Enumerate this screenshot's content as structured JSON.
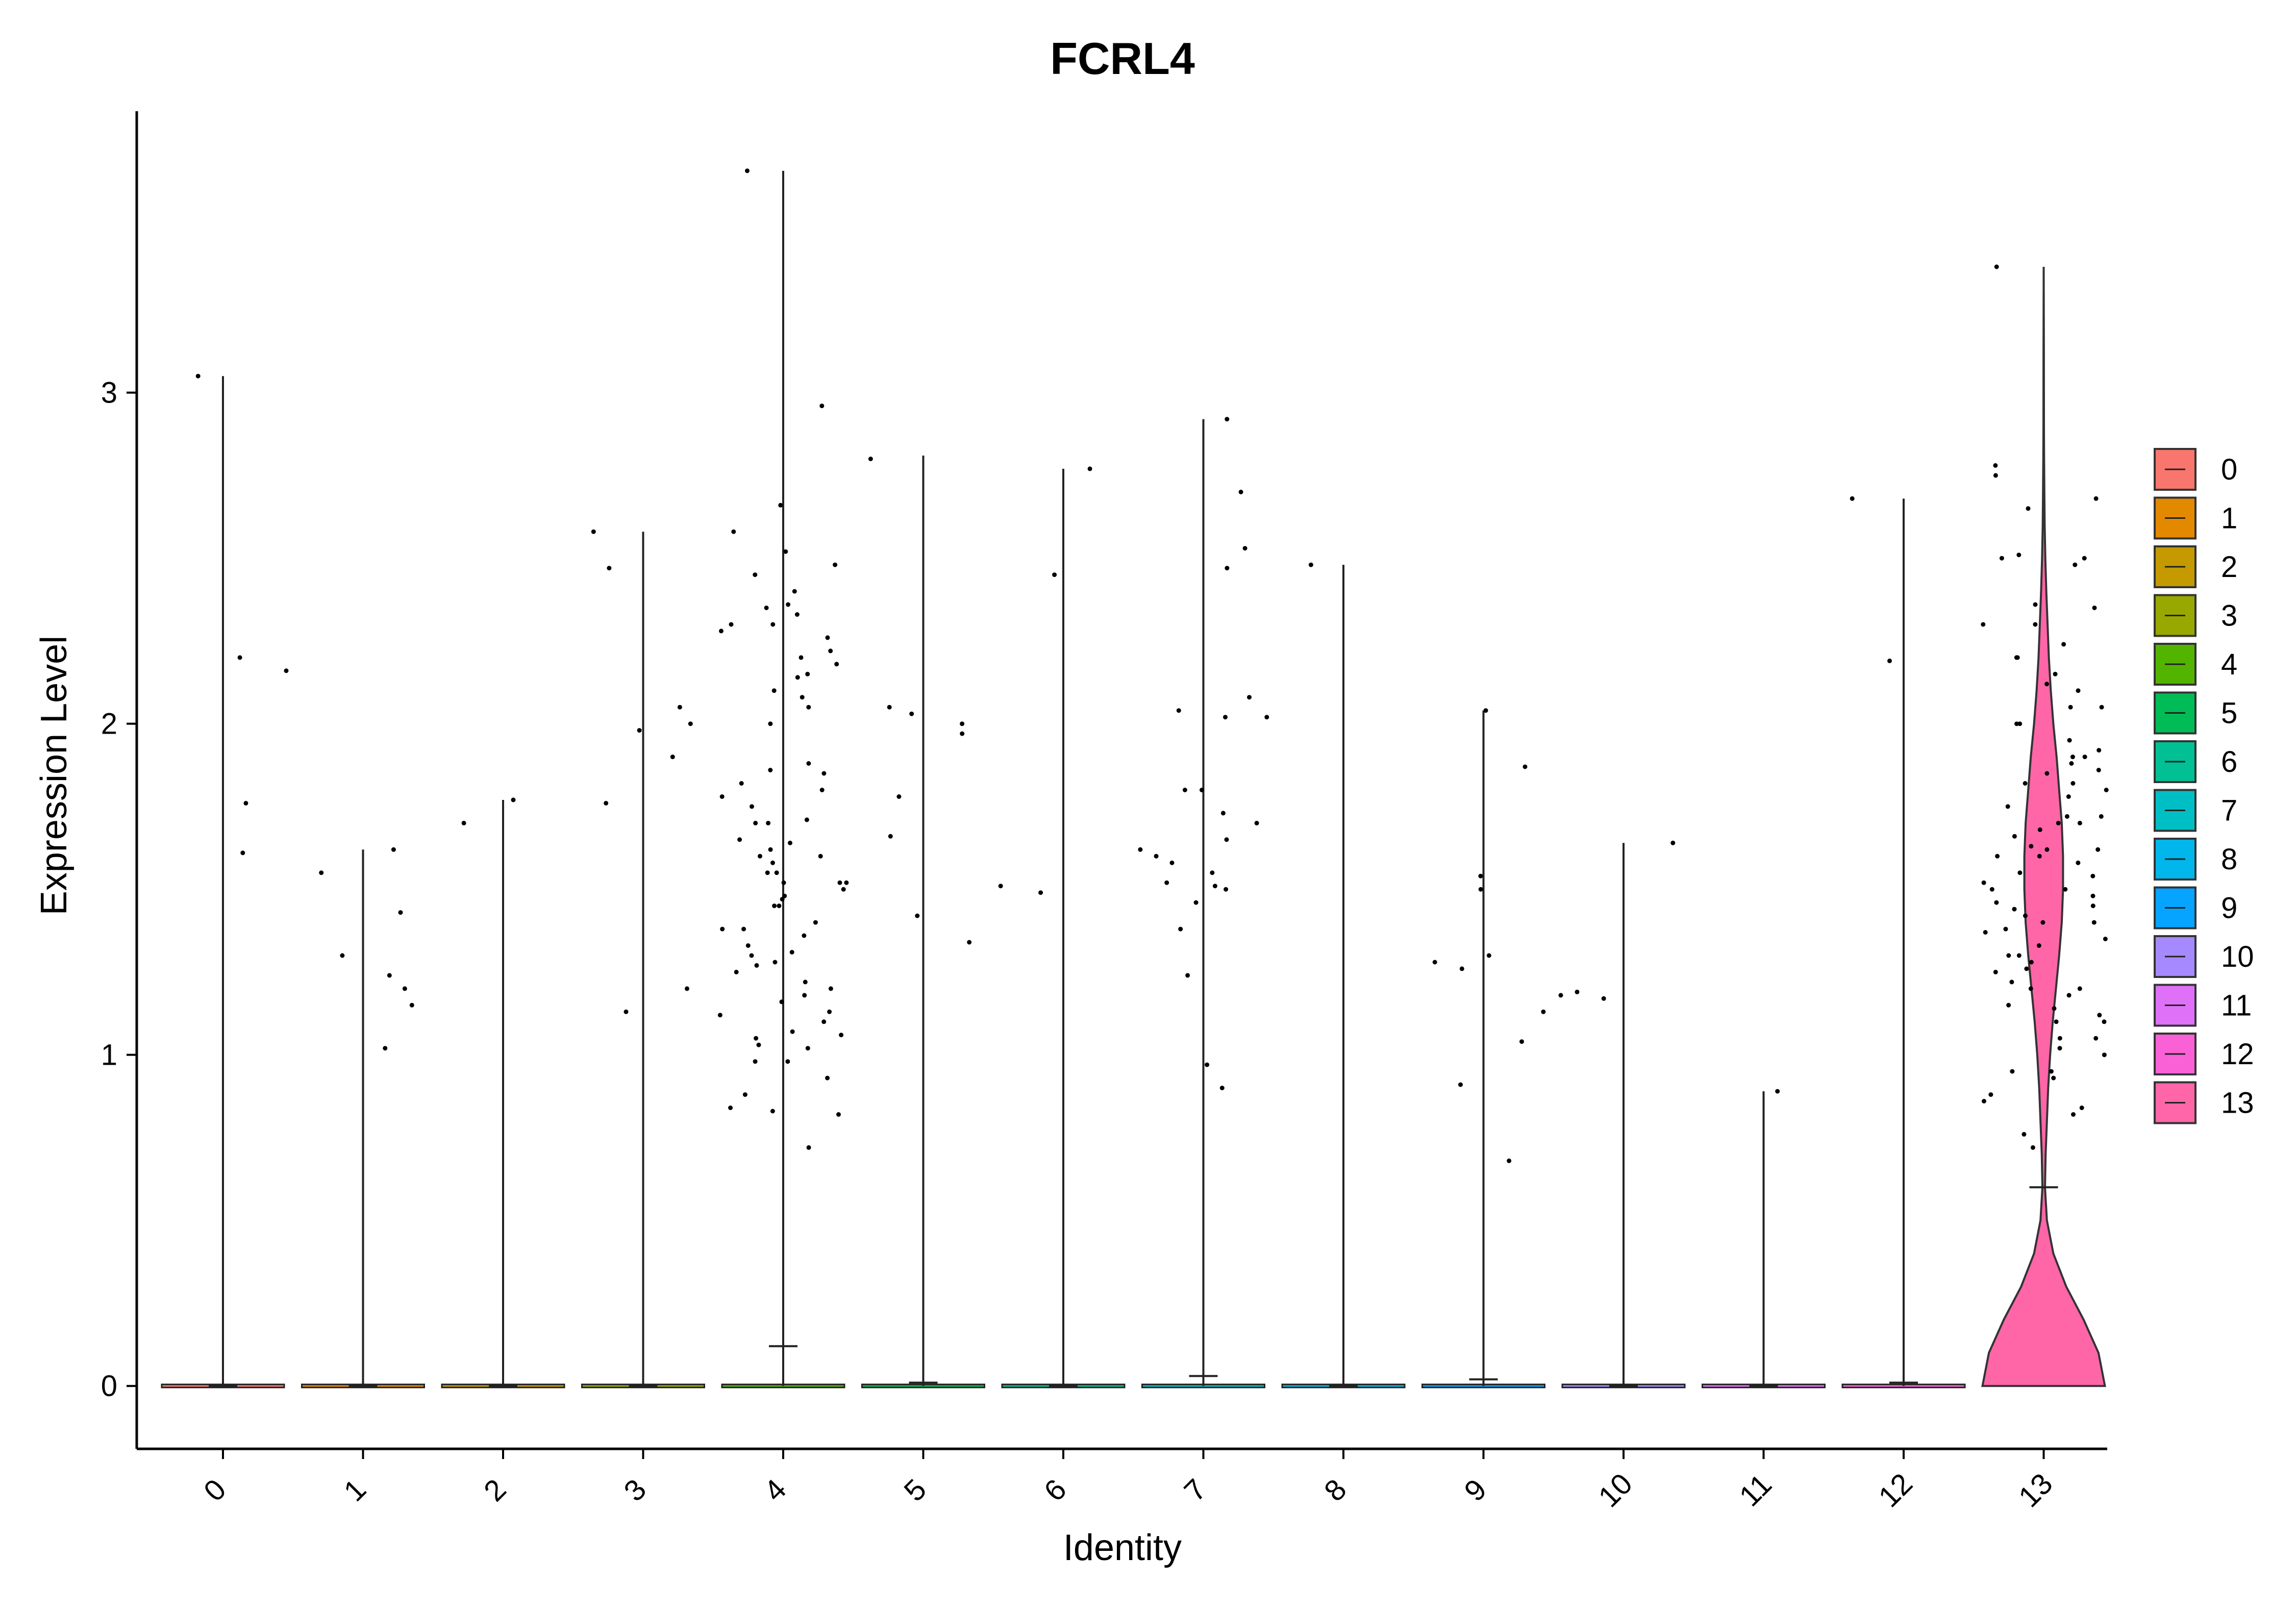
{
  "chart_data": {
    "type": "violin",
    "title": "FCRL4",
    "xlabel": "Identity",
    "ylabel": "Expression Level",
    "ylim": [
      -0.19,
      3.85
    ],
    "yticks": [
      "0",
      "1",
      "2",
      "3"
    ],
    "grid": false,
    "legend_position": "right",
    "categories": [
      "0",
      "1",
      "2",
      "3",
      "4",
      "5",
      "6",
      "7",
      "8",
      "9",
      "10",
      "11",
      "12",
      "13"
    ],
    "colors": [
      "#F8766D",
      "#E38900",
      "#C49A00",
      "#99A800",
      "#53B400",
      "#00BC56",
      "#00C094",
      "#00BFC4",
      "#00B6EB",
      "#06A4FF",
      "#A58AFF",
      "#DF70F8",
      "#FB61D7",
      "#FF66A8"
    ],
    "max_expression": [
      3.05,
      1.62,
      1.77,
      2.58,
      3.67,
      2.81,
      2.77,
      2.92,
      2.48,
      2.04,
      1.64,
      0.89,
      2.68,
      3.38
    ],
    "median_tick": [
      0,
      0,
      0,
      0,
      0.12,
      0.01,
      0,
      0.03,
      0,
      0.02,
      0,
      0,
      0.01,
      0.6
    ],
    "violin_13_density": [
      [
        0.0,
        0.95
      ],
      [
        0.1,
        0.85
      ],
      [
        0.2,
        0.62
      ],
      [
        0.3,
        0.35
      ],
      [
        0.4,
        0.15
      ],
      [
        0.5,
        0.05
      ],
      [
        0.6,
        0.02
      ],
      [
        0.7,
        0.03
      ],
      [
        0.8,
        0.05
      ],
      [
        0.9,
        0.07
      ],
      [
        1.0,
        0.1
      ],
      [
        1.1,
        0.14
      ],
      [
        1.2,
        0.19
      ],
      [
        1.3,
        0.24
      ],
      [
        1.4,
        0.28
      ],
      [
        1.5,
        0.3
      ],
      [
        1.6,
        0.3
      ],
      [
        1.7,
        0.28
      ],
      [
        1.8,
        0.24
      ],
      [
        1.9,
        0.2
      ],
      [
        2.0,
        0.15
      ],
      [
        2.1,
        0.11
      ],
      [
        2.2,
        0.08
      ],
      [
        2.3,
        0.06
      ],
      [
        2.4,
        0.04
      ],
      [
        2.5,
        0.025
      ],
      [
        2.6,
        0.015
      ],
      [
        2.7,
        0.01
      ],
      [
        2.8,
        0.006
      ],
      [
        2.9,
        0.004
      ],
      [
        3.1,
        0.003
      ],
      [
        3.38,
        0.0
      ]
    ],
    "points": [
      {
        "cluster": "0",
        "values": [
          1.61,
          3.05,
          2.2,
          2.16,
          1.76
        ]
      },
      {
        "cluster": "1",
        "values": [
          1.02,
          1.55,
          1.15,
          1.24,
          1.2,
          1.62,
          1.3,
          1.43
        ]
      },
      {
        "cluster": "2",
        "values": [
          1.7,
          1.77
        ]
      },
      {
        "cluster": "3",
        "values": [
          2.47,
          1.76,
          2.05,
          2.0,
          1.2,
          2.58,
          1.98,
          1.9,
          1.13
        ]
      },
      {
        "cluster": "4",
        "values": [
          2.45,
          2.35,
          2.18,
          2.22,
          2.3,
          2.1,
          1.85,
          1.82,
          1.65,
          1.6,
          1.55,
          1.52,
          1.5,
          1.45,
          1.4,
          1.33,
          1.28,
          1.2,
          1.1,
          1.03,
          0.98,
          0.93,
          0.72,
          2.58,
          2.4,
          2.3,
          2.15,
          2.0,
          1.88,
          1.75,
          1.7,
          1.62,
          1.58,
          1.52,
          1.45,
          1.38,
          1.3,
          1.25,
          1.18,
          1.12,
          1.05,
          0.98,
          0.83,
          3.67,
          2.96,
          2.66,
          2.36,
          2.26,
          2.14,
          2.05,
          1.78,
          1.64,
          1.55,
          1.48,
          1.36,
          1.27,
          1.16,
          1.06,
          0.88,
          2.52,
          2.48,
          2.33,
          2.28,
          2.2,
          2.08,
          1.86,
          1.8,
          1.71,
          1.7,
          1.6,
          1.52,
          1.47,
          1.38,
          1.31,
          1.22,
          1.13,
          1.07,
          1.02,
          0.84,
          0.82
        ]
      },
      {
        "cluster": "5",
        "values": [
          2.8,
          1.66,
          1.42,
          2.0,
          1.78,
          1.34,
          2.05,
          1.97,
          2.03
        ]
      },
      {
        "cluster": "6",
        "values": [
          2.45,
          1.51,
          1.49,
          2.77
        ]
      },
      {
        "cluster": "7",
        "values": [
          2.53,
          2.7,
          2.02,
          1.51,
          2.08,
          2.04,
          1.62,
          1.58,
          0.97,
          0.9,
          2.47,
          2.02,
          1.8,
          1.73,
          1.7,
          1.65,
          1.6,
          1.55,
          1.52,
          1.5,
          1.46,
          1.38,
          2.92,
          1.8,
          1.24
        ]
      },
      {
        "cluster": "8",
        "values": [
          2.48
        ]
      },
      {
        "cluster": "9",
        "values": [
          1.26,
          1.28,
          1.3,
          1.13,
          0.68,
          2.04,
          1.87,
          1.04,
          0.91,
          1.54,
          1.5
        ]
      },
      {
        "cluster": "10",
        "values": [
          1.19,
          1.64,
          1.17,
          1.18
        ]
      },
      {
        "cluster": "11",
        "values": [
          0.89
        ]
      },
      {
        "cluster": "12",
        "values": [
          2.19,
          2.68
        ]
      },
      {
        "cluster": "13",
        "values": [
          3.38,
          2.78,
          2.75,
          2.1,
          2.05,
          1.95,
          1.82,
          1.75,
          1.68,
          1.62,
          1.55,
          1.5,
          1.48,
          1.42,
          1.35,
          1.3,
          1.22,
          1.14,
          1.1,
          0.95,
          0.82,
          2.51,
          2.5,
          2.2,
          2.12,
          1.9,
          1.85,
          1.78,
          1.72,
          1.66,
          1.6,
          1.58,
          1.52,
          1.46,
          1.4,
          1.33,
          1.26,
          1.18,
          1.05,
          0.93,
          0.76,
          2.36,
          2.3,
          2.15,
          2.0,
          1.92,
          1.86,
          1.7,
          1.63,
          1.54,
          1.44,
          1.37,
          1.28,
          1.2,
          1.12,
          1.0,
          0.86,
          0.72,
          2.65,
          2.5,
          2.35,
          2.2,
          2.05,
          1.88,
          1.8,
          1.7,
          1.6,
          1.5,
          1.4,
          1.3,
          1.2,
          1.1,
          1.02,
          0.95,
          0.88,
          2.68,
          2.48,
          2.3,
          2.24,
          2.0,
          1.9,
          1.82,
          1.72,
          1.62,
          1.45,
          1.38,
          1.25,
          1.15,
          1.05,
          0.84
        ]
      }
    ]
  }
}
